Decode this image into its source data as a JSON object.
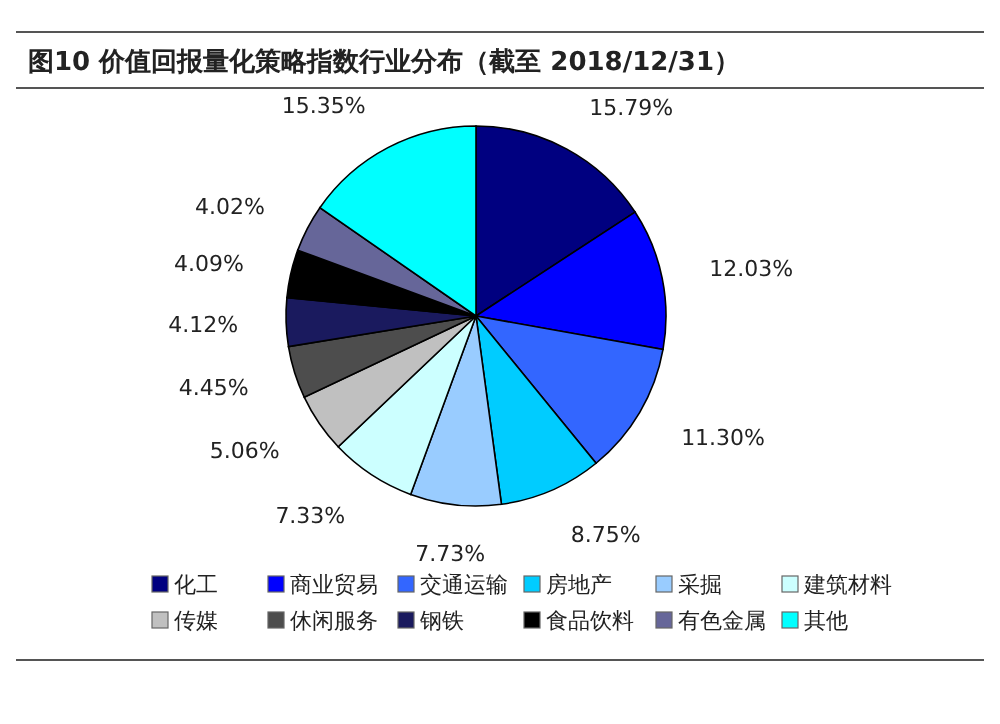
{
  "chart_data": {
    "type": "pie",
    "title": "图10 价值回报量化策略指数行业分布（截至 2018/12/31）",
    "categories": [
      "化工",
      "商业贸易",
      "交通运输",
      "房地产",
      "采掘",
      "建筑材料",
      "传媒",
      "休闲服务",
      "钢铁",
      "食品饮料",
      "有色金属",
      "其他"
    ],
    "values": [
      15.79,
      12.03,
      11.3,
      8.75,
      7.73,
      7.33,
      5.06,
      4.45,
      4.12,
      4.09,
      4.02,
      15.35
    ],
    "value_labels": [
      "15.79%",
      "12.03%",
      "11.30%",
      "8.75%",
      "7.73%",
      "7.33%",
      "5.06%",
      "4.45%",
      "4.12%",
      "4.09%",
      "4.02%",
      "15.35%"
    ],
    "colors": [
      "#000080",
      "#0000ff",
      "#3366ff",
      "#00ccff",
      "#99ccff",
      "#ccffff",
      "#c0c0c0",
      "#4d4d4d",
      "#1a1a5e",
      "#000000",
      "#666699",
      "#00ffff"
    ],
    "legend": "bottom"
  }
}
